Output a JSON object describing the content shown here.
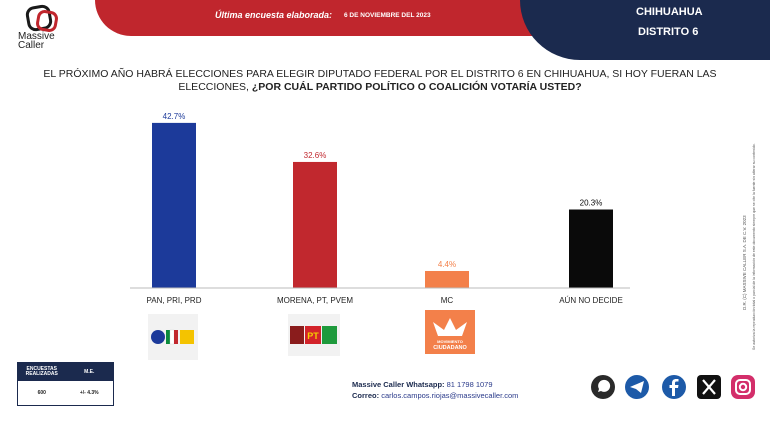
{
  "brand": {
    "name_line1": "Massive",
    "name_line2": "Caller"
  },
  "header": {
    "survey_label": "Última encuesta elaborada:",
    "survey_date": "6 DE NOVIEMBRE DEL 2023"
  },
  "region": {
    "state": "CHIHUAHUA",
    "district": "DISTRITO 6"
  },
  "question": {
    "part1": "EL PRÓXIMO AÑO HABRÁ ELECCIONES PARA ELEGIR DIPUTADO FEDERAL POR EL DISTRITO 6 EN CHIHUAHUA, SI HOY FUERAN LAS ELECCIONES,",
    "part2": "¿POR CUÁL PARTIDO POLÍTICO O COALICIÓN VOTARÍA USTED?"
  },
  "chart_data": {
    "type": "bar",
    "categories": [
      "PAN, PRI, PRD",
      "MORENA, PT, PVEM",
      "MC",
      "AÚN NO DECIDE"
    ],
    "values": [
      42.7,
      32.6,
      4.4,
      20.3
    ],
    "value_labels": [
      "42.7%",
      "32.6%",
      "4.4%",
      "20.3%"
    ],
    "colors": [
      "#1c3a9a",
      "#c1282e",
      "#f3804a",
      "#0a0a0a"
    ],
    "label_colors": [
      "#1c3a9a",
      "#c1282e",
      "#f3804a",
      "#0a0a0a"
    ],
    "ylim": [
      0,
      45
    ],
    "grid": false
  },
  "logos": {
    "mc_line1": "MOVIMIENTO",
    "mc_line2": "CIUDADANO",
    "pt": "PT"
  },
  "side_note": {
    "line1": "D.R. (C) MASSIVE CALLER S.A. DE C.V. 2023",
    "line2": "Se autoriza la reproducción total o parcial de la información de este documento siempre que se cite la fuente sin alterar su contenido."
  },
  "stats": {
    "col1_header": "ENCUESTAS REALIZADAS",
    "col2_header": "M.E.",
    "col1_value": "600",
    "col2_value": "+/- 4.3%"
  },
  "contact": {
    "whatsapp_label": "Massive Caller Whatsapp:",
    "whatsapp_value": "81 1798 1079",
    "mail_label": "Correo:",
    "mail_value": "carlos.campos.riojas@massivecaller.com"
  },
  "social": [
    "whatsapp-icon",
    "telegram-icon",
    "facebook-icon",
    "x-icon",
    "instagram-icon"
  ]
}
